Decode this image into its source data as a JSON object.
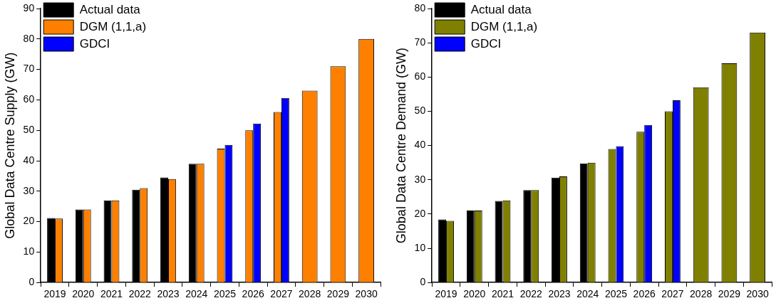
{
  "chart_data": [
    {
      "type": "bar",
      "ylabel": "Global Data Centre Supply (GW)",
      "categories": [
        "2019",
        "2020",
        "2021",
        "2022",
        "2023",
        "2024",
        "2025",
        "2026",
        "2027",
        "2028",
        "2029",
        "2030"
      ],
      "series": [
        {
          "name": "Actual data",
          "color": "#000000",
          "values": [
            21.2,
            24,
            27,
            30.5,
            34.5,
            39,
            null,
            null,
            null,
            null,
            null,
            null
          ]
        },
        {
          "name": "DGM (1,1,a)",
          "color": "#ff8000",
          "values": [
            21,
            24,
            27,
            31,
            34,
            39,
            44,
            50,
            56,
            63,
            71,
            80
          ]
        },
        {
          "name": "GDCI",
          "color": "#0000ff",
          "values": [
            null,
            null,
            null,
            null,
            null,
            null,
            45.2,
            52.2,
            60.6,
            null,
            null,
            null
          ]
        }
      ],
      "ylim": [
        0,
        90
      ],
      "yticks": [
        0,
        10,
        20,
        30,
        40,
        50,
        60,
        70,
        80,
        90
      ],
      "grid": false,
      "legend": "top left"
    },
    {
      "type": "bar",
      "ylabel": "Global Data Centre Demand (GW)",
      "categories": [
        "2019",
        "2020",
        "2021",
        "2022",
        "2023",
        "2024",
        "2025",
        "2026",
        "2027",
        "2028",
        "2029",
        "2030"
      ],
      "series": [
        {
          "name": "Actual data",
          "color": "#000000",
          "values": [
            18.4,
            21,
            23.8,
            27,
            30.6,
            34.8,
            null,
            null,
            null,
            null,
            null,
            null
          ]
        },
        {
          "name": "DGM (1,1,a)",
          "color": "#808000",
          "values": [
            18,
            21,
            24,
            27,
            31,
            35,
            39,
            44,
            50,
            57,
            64,
            73
          ]
        },
        {
          "name": "GDCI",
          "color": "#0000ff",
          "values": [
            null,
            null,
            null,
            null,
            null,
            null,
            39.8,
            46,
            53.2,
            null,
            null,
            null
          ]
        }
      ],
      "ylim": [
        0,
        80
      ],
      "yticks": [
        0,
        10,
        20,
        30,
        40,
        50,
        60,
        70,
        80
      ],
      "grid": false,
      "legend": "top left"
    }
  ]
}
